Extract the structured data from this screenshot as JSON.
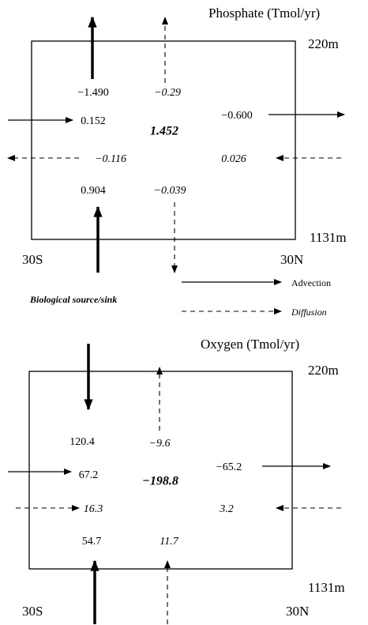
{
  "legend": {
    "biological": "Biological source/sink",
    "advection": "Advection",
    "diffusion": "Diffusion"
  },
  "panels": [
    {
      "title": "Phosphate (Tmol/yr)",
      "depth_top": "220m",
      "depth_bottom": "1131m",
      "lat_south": "30S",
      "lat_north": "30N",
      "net": "1.452",
      "fluxes": {
        "top_advection": "−1.490",
        "top_diffusion": "−0.29",
        "south_advection": "0.152",
        "north_advection": "−0.600",
        "south_diffusion": "−0.116",
        "north_diffusion": "0.026",
        "bottom_advection": "0.904",
        "bottom_diffusion": "−0.039"
      }
    },
    {
      "title": "Oxygen (Tmol/yr)",
      "depth_top": "220m",
      "depth_bottom": "1131m",
      "lat_south": "30S",
      "lat_north": "30N",
      "net": "−198.8",
      "fluxes": {
        "top_advection": "120.4",
        "top_diffusion": "−9.6",
        "south_advection": "67.2",
        "north_advection": "−65.2",
        "south_diffusion": "16.3",
        "north_diffusion": "3.2",
        "bottom_advection": "54.7",
        "bottom_diffusion": "11.7"
      }
    }
  ]
}
